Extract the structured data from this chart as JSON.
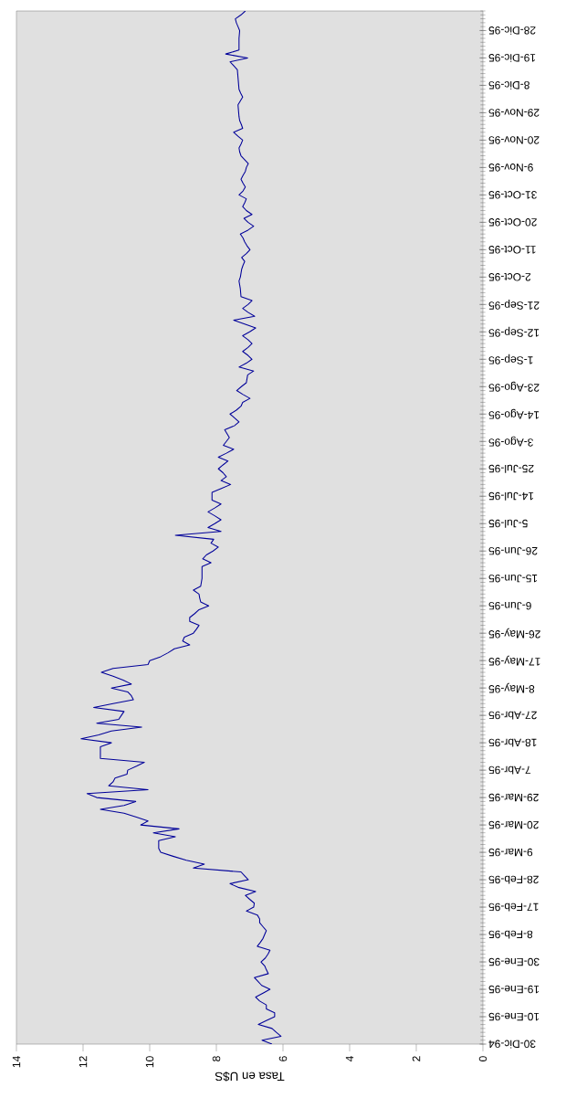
{
  "chart_data": {
    "type": "line",
    "orientation": "horizontal",
    "xlabel": "Tasa en U$S",
    "xlim": [
      14,
      0
    ],
    "xticks": [
      0,
      2,
      4,
      6,
      8,
      10,
      12,
      14
    ],
    "color": "#000099",
    "categories": [
      null,
      null,
      null,
      null,
      null,
      "28-Dic-95",
      null,
      null,
      null,
      null,
      null,
      null,
      "19-Dic-95",
      null,
      null,
      null,
      null,
      null,
      null,
      "8-Dic-95",
      null,
      null,
      null,
      null,
      null,
      null,
      "29-Nov-95",
      null,
      null,
      null,
      null,
      null,
      null,
      "20-Nov-95",
      null,
      null,
      null,
      null,
      null,
      null,
      "9-Nov-95",
      null,
      null,
      null,
      null,
      null,
      null,
      "31-Oct-95",
      null,
      null,
      null,
      null,
      null,
      null,
      "20-Oct-95",
      null,
      null,
      null,
      null,
      null,
      null,
      "11-Oct-95",
      null,
      null,
      null,
      null,
      null,
      null,
      "2-Oct-95",
      null,
      null,
      null,
      null,
      null,
      null,
      "21-Sep-95",
      null,
      null,
      null,
      null,
      null,
      null,
      "12-Sep-95",
      null,
      null,
      null,
      null,
      null,
      null,
      "1-Sep-95",
      null,
      null,
      null,
      null,
      null,
      null,
      "23-Ago-95",
      null,
      null,
      null,
      null,
      null,
      null,
      "14-Ago-95",
      null,
      null,
      null,
      null,
      null,
      null,
      "3-Ago-95",
      null,
      null,
      null,
      null,
      null,
      null,
      "25-Jul-95",
      null,
      null,
      null,
      null,
      null,
      null,
      "14-Jul-95",
      null,
      null,
      null,
      null,
      null,
      null,
      "5-Jul-95",
      null,
      null,
      null,
      null,
      null,
      null,
      "26-Jun-95",
      null,
      null,
      null,
      null,
      null,
      null,
      "15-Jun-95",
      null,
      null,
      null,
      null,
      null,
      null,
      "6-Jun-95",
      null,
      null,
      null,
      null,
      null,
      null,
      "26-May-95",
      null,
      null,
      null,
      null,
      null,
      null,
      "17-May-95",
      null,
      null,
      null,
      null,
      null,
      null,
      "8-May-95",
      null,
      null,
      null,
      null,
      null,
      null,
      "27-Abr-95",
      null,
      null,
      null,
      null,
      null,
      null,
      "18-Abr-95",
      null,
      null,
      null,
      null,
      null,
      null,
      "7-Abr-95",
      null,
      null,
      null,
      null,
      null,
      null,
      "29-Mar-95",
      null,
      null,
      null,
      null,
      null,
      null,
      "20-Mar-95",
      null,
      null,
      null,
      null,
      null,
      null,
      "9-Mar-95",
      null,
      null,
      null,
      null,
      null,
      null,
      "28-Feb-95",
      null,
      null,
      null,
      null,
      null,
      null,
      "17-Feb-95",
      null,
      null,
      null,
      null,
      null,
      null,
      "8-Feb-95",
      null,
      null,
      null,
      null,
      null,
      null,
      "30-Ene-95",
      null,
      null,
      null,
      null,
      null,
      null,
      "19-Ene-95",
      null,
      null,
      null,
      null,
      null,
      null,
      "10-Ene-95",
      null,
      null,
      null,
      null,
      null,
      null,
      "30-Dic-94"
    ],
    "values": [
      7.13,
      7.26,
      7.43,
      7.4,
      7.35,
      7.3,
      7.31,
      7.32,
      7.32,
      7.32,
      7.32,
      7.72,
      7.06,
      7.59,
      7.48,
      7.37,
      7.36,
      7.35,
      7.34,
      7.33,
      7.32,
      7.27,
      7.21,
      7.28,
      7.35,
      7.34,
      7.33,
      7.32,
      7.3,
      7.25,
      7.21,
      7.48,
      7.35,
      7.21,
      7.26,
      7.32,
      7.3,
      7.26,
      7.15,
      7.04,
      7.1,
      7.13,
      7.2,
      7.26,
      7.2,
      7.13,
      7.2,
      7.32,
      7.1,
      7.15,
      7.21,
      7.1,
      6.93,
      7.17,
      7.05,
      6.88,
      7.05,
      7.28,
      7.2,
      7.15,
      7.08,
      6.99,
      7.1,
      7.24,
      7.15,
      7.2,
      7.24,
      7.26,
      7.28,
      7.32,
      7.3,
      7.28,
      7.27,
      7.26,
      6.93,
      7.05,
      7.21,
      7.05,
      6.85,
      7.48,
      7.15,
      6.82,
      7.0,
      7.21,
      7.05,
      6.93,
      7.05,
      7.21,
      7.05,
      6.93,
      7.1,
      7.32,
      6.88,
      7.06,
      7.08,
      7.1,
      7.25,
      7.39,
      7.2,
      6.99,
      7.21,
      7.26,
      7.4,
      7.59,
      7.45,
      7.32,
      7.46,
      7.75,
      7.68,
      7.61,
      7.7,
      7.79,
      7.48,
      7.7,
      7.94,
      7.65,
      7.8,
      7.94,
      7.8,
      7.7,
      7.86,
      7.57,
      7.85,
      8.13,
      8.13,
      8.13,
      7.86,
      8.05,
      8.25,
      8.05,
      7.86,
      8.05,
      8.25,
      7.86,
      9.23,
      8.08,
      8.16,
      7.94,
      8.1,
      8.3,
      8.41,
      8.16,
      8.43,
      8.43,
      8.43,
      8.43,
      8.45,
      8.47,
      8.69,
      8.52,
      8.5,
      8.47,
      8.23,
      8.52,
      8.65,
      8.8,
      8.8,
      8.52,
      8.6,
      8.69,
      8.96,
      9.01,
      8.8,
      9.26,
      9.45,
      9.67,
      10.0,
      10.05,
      11.1,
      11.45,
      11.1,
      10.8,
      10.55,
      11.15,
      10.66,
      10.55,
      10.49,
      11.1,
      11.68,
      10.77,
      10.85,
      10.93,
      11.59,
      10.24,
      11.15,
      11.53,
      12.06,
      11.15,
      11.48,
      11.48,
      11.48,
      11.48,
      10.16,
      10.4,
      10.66,
      10.68,
      11.04,
      11.1,
      11.23,
      10.05,
      11.88,
      11.59,
      10.42,
      10.77,
      11.48,
      10.77,
      10.4,
      10.05,
      10.27,
      9.12,
      9.89,
      9.23,
      9.73,
      9.73,
      9.73,
      9.67,
      9.3,
      8.9,
      8.36,
      8.69,
      7.26,
      7.15,
      7.04,
      7.59,
      7.32,
      6.82,
      7.13,
      7.0,
      6.86,
      6.88,
      7.1,
      6.77,
      6.7,
      6.7,
      6.6,
      6.5,
      6.55,
      6.6,
      6.68,
      6.77,
      6.39,
      6.45,
      6.53,
      6.66,
      6.55,
      6.5,
      6.44,
      6.86,
      6.75,
      6.64,
      6.39,
      6.6,
      6.82,
      6.7,
      6.5,
      6.5,
      6.25,
      6.25,
      6.5,
      6.74,
      6.33,
      6.2,
      6.06,
      6.63,
      6.33
    ]
  }
}
